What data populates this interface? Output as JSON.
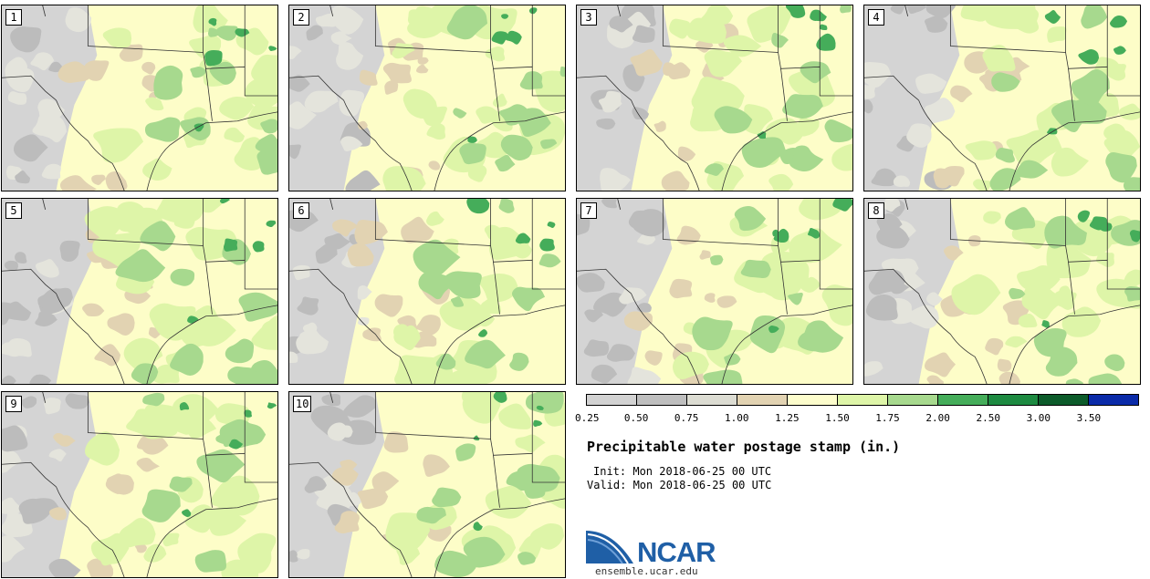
{
  "panels": [
    {
      "label": "1"
    },
    {
      "label": "2"
    },
    {
      "label": "3"
    },
    {
      "label": "4"
    },
    {
      "label": "5"
    },
    {
      "label": "6"
    },
    {
      "label": "7"
    },
    {
      "label": "8"
    },
    {
      "label": "9"
    },
    {
      "label": "10"
    }
  ],
  "colorbar": {
    "colors": [
      "#d2d2d2",
      "#bebebe",
      "#dcdcd2",
      "#e2d3b2",
      "#fdfdcc",
      "#def5a8",
      "#a7d98e",
      "#45ad5a",
      "#1d8a41",
      "#0c5b2a",
      "#0a2aa8"
    ],
    "ticks": [
      "0.25",
      "0.50",
      "0.75",
      "1.00",
      "1.25",
      "1.50",
      "1.75",
      "2.00",
      "2.50",
      "3.00",
      "3.50"
    ]
  },
  "title": "Precipitable water postage stamp (in.)",
  "init": "Init: Mon 2018-06-25 00 UTC",
  "valid": "Valid: Mon 2018-06-25 00 UTC",
  "logo": {
    "text": "NCAR",
    "site": "ensemble.ucar.edu"
  }
}
